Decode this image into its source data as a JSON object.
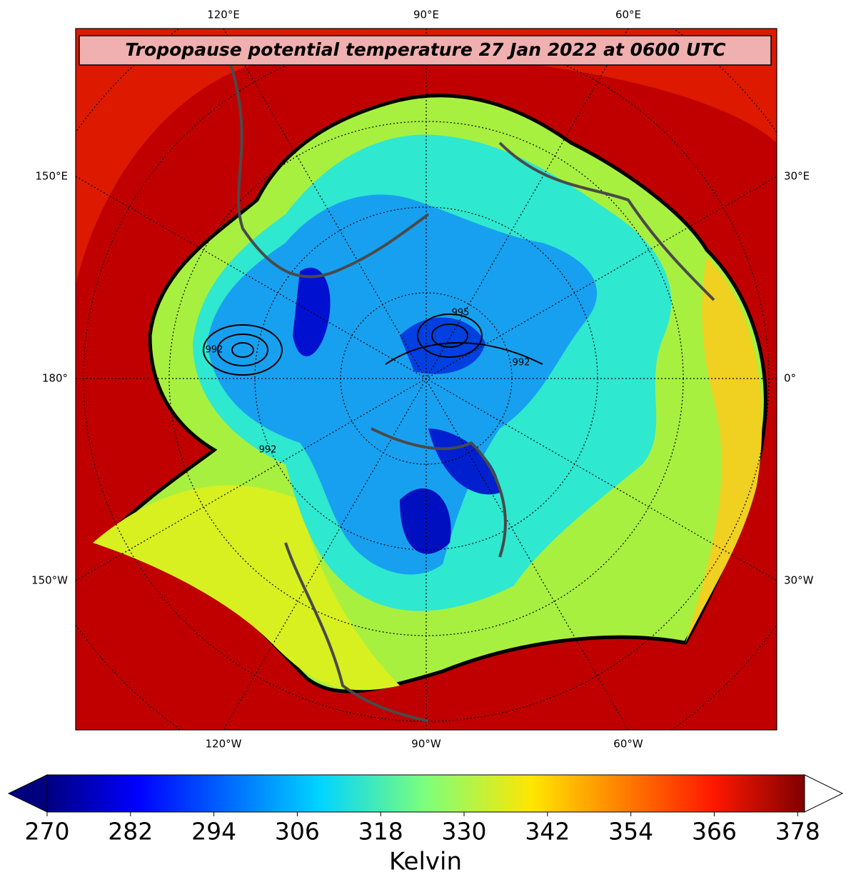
{
  "map": {
    "title": "Tropopause potential temperature 27 Jan 2022 at 0600 UTC",
    "lon_labels_top": [
      "120°E",
      "90°E",
      "60°E"
    ],
    "lon_labels_bottom": [
      "120°W",
      "90°W",
      "60°W"
    ],
    "lon_labels_left": [
      "150°E",
      "180°",
      "150°W"
    ],
    "lon_labels_right": [
      "30°E",
      "0°",
      "30°W"
    ],
    "contour_labels": [
      "992",
      "995",
      "992",
      "992"
    ]
  },
  "colorbar": {
    "label": "Kelvin",
    "lim": [
      270,
      379
    ],
    "ticks": [
      270,
      282,
      294,
      306,
      318,
      330,
      342,
      354,
      366,
      378
    ]
  }
}
